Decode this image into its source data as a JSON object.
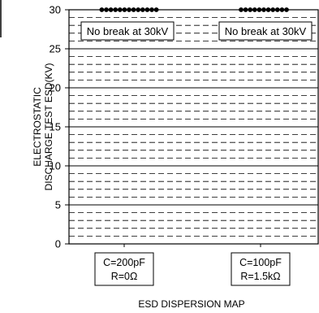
{
  "chart_data": {
    "type": "scatter",
    "xlabel": "ESD DISPERSION MAP",
    "ylabel_lines": [
      "ELECTROSTATIC",
      "DISCHARGE TEST ESD(KV)"
    ],
    "ylim": [
      0,
      30
    ],
    "yticks": [
      0,
      5,
      10,
      15,
      20,
      25,
      30
    ],
    "grid": {
      "major_every": 5,
      "minor_every": 1,
      "minor_style": "dashed"
    },
    "categories": [
      {
        "lines": [
          "C=200pF",
          "R=0Ω"
        ],
        "annotation": "No break at 30kV"
      },
      {
        "lines": [
          "C=100pF",
          "R=1.5kΩ"
        ],
        "annotation": "No break at 30kV"
      }
    ],
    "series": [
      {
        "category_index": 0,
        "y": 30,
        "count": 13
      },
      {
        "category_index": 1,
        "y": 30,
        "count": 11
      }
    ]
  }
}
